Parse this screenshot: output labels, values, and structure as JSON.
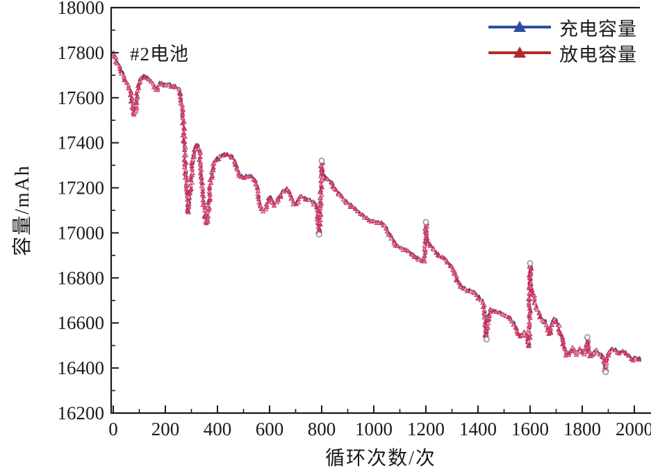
{
  "chart_data": {
    "type": "line",
    "annotation": "#2电池",
    "xlabel": "循环次数/次",
    "ylabel": "容量/mAh",
    "xlim": [
      0,
      2065
    ],
    "ylim": [
      16200,
      18000
    ],
    "x_major_ticks": [
      0,
      200,
      400,
      600,
      800,
      1000,
      1200,
      1400,
      1600,
      1800,
      2000
    ],
    "x_minor_ticks": [
      100,
      300,
      500,
      700,
      900,
      1100,
      1300,
      1500,
      1700,
      1900
    ],
    "y_major_ticks": [
      16200,
      16400,
      16600,
      16800,
      17000,
      17200,
      17400,
      17600,
      17800,
      18000
    ],
    "y_minor_ticks": [
      16300,
      16500,
      16700,
      16900,
      17100,
      17300,
      17500,
      17700,
      17900
    ],
    "grid": false,
    "legend_position": "top-right-inside",
    "series": [
      {
        "name": "充电容量",
        "legend_color": "#2c4da1",
        "marker": "triangle",
        "marker_color": "#31509c",
        "line_color": "#5d6470",
        "value_offset": 6
      },
      {
        "name": "放电容量",
        "legend_color": "#b02a2a",
        "marker": "triangle",
        "marker_palette": [
          "#ef7394",
          "#e05577",
          "#f49ab2",
          "#d63d64",
          "#e86283"
        ],
        "marker_edge": "#a81f48",
        "line_color": "#c2395f",
        "value_offset": 0
      }
    ],
    "points": [
      [
        0,
        17795
      ],
      [
        5,
        17780
      ],
      [
        10,
        17768
      ],
      [
        16,
        17755
      ],
      [
        22,
        17742
      ],
      [
        28,
        17728
      ],
      [
        34,
        17712
      ],
      [
        40,
        17690
      ],
      [
        46,
        17672
      ],
      [
        52,
        17660
      ],
      [
        58,
        17648
      ],
      [
        64,
        17630
      ],
      [
        70,
        17595
      ],
      [
        76,
        17550
      ],
      [
        81,
        17522
      ],
      [
        86,
        17545
      ],
      [
        92,
        17605
      ],
      [
        98,
        17655
      ],
      [
        105,
        17678
      ],
      [
        112,
        17690
      ],
      [
        120,
        17696
      ],
      [
        128,
        17690
      ],
      [
        136,
        17682
      ],
      [
        144,
        17670
      ],
      [
        152,
        17655
      ],
      [
        159,
        17642
      ],
      [
        165,
        17632
      ],
      [
        171,
        17645
      ],
      [
        178,
        17660
      ],
      [
        186,
        17663
      ],
      [
        194,
        17658
      ],
      [
        202,
        17654
      ],
      [
        210,
        17660
      ],
      [
        218,
        17656
      ],
      [
        226,
        17650
      ],
      [
        234,
        17646
      ],
      [
        242,
        17642
      ],
      [
        250,
        17638
      ],
      [
        256,
        17625
      ],
      [
        262,
        17585
      ],
      [
        267,
        17515
      ],
      [
        271,
        17440
      ],
      [
        275,
        17350
      ],
      [
        279,
        17245
      ],
      [
        283,
        17150
      ],
      [
        287,
        17088
      ],
      [
        292,
        17130
      ],
      [
        297,
        17210
      ],
      [
        302,
        17275
      ],
      [
        307,
        17330
      ],
      [
        313,
        17365
      ],
      [
        319,
        17390
      ],
      [
        325,
        17388
      ],
      [
        331,
        17352
      ],
      [
        337,
        17285
      ],
      [
        343,
        17195
      ],
      [
        349,
        17115
      ],
      [
        355,
        17058
      ],
      [
        360,
        17040
      ],
      [
        365,
        17105
      ],
      [
        370,
        17185
      ],
      [
        376,
        17250
      ],
      [
        382,
        17290
      ],
      [
        389,
        17318
      ],
      [
        396,
        17328
      ],
      [
        405,
        17332
      ],
      [
        415,
        17340
      ],
      [
        425,
        17344
      ],
      [
        435,
        17345
      ],
      [
        445,
        17340
      ],
      [
        455,
        17334
      ],
      [
        463,
        17322
      ],
      [
        470,
        17300
      ],
      [
        478,
        17272
      ],
      [
        486,
        17252
      ],
      [
        494,
        17244
      ],
      [
        502,
        17242
      ],
      [
        512,
        17248
      ],
      [
        522,
        17252
      ],
      [
        532,
        17247
      ],
      [
        541,
        17238
      ],
      [
        548,
        17222
      ],
      [
        555,
        17185
      ],
      [
        562,
        17135
      ],
      [
        569,
        17105
      ],
      [
        576,
        17094
      ],
      [
        583,
        17102
      ],
      [
        590,
        17128
      ],
      [
        597,
        17150
      ],
      [
        604,
        17158
      ],
      [
        611,
        17142
      ],
      [
        618,
        17124
      ],
      [
        625,
        17128
      ],
      [
        632,
        17146
      ],
      [
        640,
        17162
      ],
      [
        649,
        17176
      ],
      [
        658,
        17188
      ],
      [
        666,
        17192
      ],
      [
        674,
        17184
      ],
      [
        681,
        17165
      ],
      [
        688,
        17138
      ],
      [
        695,
        17122
      ],
      [
        702,
        17122
      ],
      [
        709,
        17140
      ],
      [
        716,
        17156
      ],
      [
        724,
        17158
      ],
      [
        733,
        17152
      ],
      [
        742,
        17148
      ],
      [
        752,
        17143
      ],
      [
        762,
        17137
      ],
      [
        771,
        17130
      ],
      [
        779,
        17122
      ],
      [
        784,
        17085
      ],
      [
        788,
        17020
      ],
      [
        790,
        16993
      ],
      [
        793,
        17062
      ],
      [
        796,
        17160
      ],
      [
        799,
        17250
      ],
      [
        800,
        17320
      ],
      [
        802,
        17262
      ],
      [
        806,
        17252
      ],
      [
        812,
        17246
      ],
      [
        820,
        17240
      ],
      [
        828,
        17232
      ],
      [
        836,
        17220
      ],
      [
        845,
        17206
      ],
      [
        854,
        17190
      ],
      [
        863,
        17176
      ],
      [
        872,
        17163
      ],
      [
        881,
        17152
      ],
      [
        890,
        17142
      ],
      [
        900,
        17132
      ],
      [
        910,
        17122
      ],
      [
        920,
        17112
      ],
      [
        930,
        17102
      ],
      [
        940,
        17092
      ],
      [
        950,
        17082
      ],
      [
        960,
        17072
      ],
      [
        970,
        17062
      ],
      [
        980,
        17056
      ],
      [
        990,
        17052
      ],
      [
        1000,
        17050
      ],
      [
        1010,
        17047
      ],
      [
        1020,
        17044
      ],
      [
        1030,
        17040
      ],
      [
        1040,
        17034
      ],
      [
        1048,
        17022
      ],
      [
        1056,
        17002
      ],
      [
        1063,
        16986
      ],
      [
        1070,
        16972
      ],
      [
        1078,
        16955
      ],
      [
        1086,
        16944
      ],
      [
        1094,
        16937
      ],
      [
        1103,
        16930
      ],
      [
        1112,
        16925
      ],
      [
        1121,
        16920
      ],
      [
        1130,
        16916
      ],
      [
        1139,
        16909
      ],
      [
        1148,
        16901
      ],
      [
        1157,
        16895
      ],
      [
        1166,
        16889
      ],
      [
        1175,
        16883
      ],
      [
        1184,
        16876
      ],
      [
        1191,
        16871
      ],
      [
        1196,
        16890
      ],
      [
        1199,
        16975
      ],
      [
        1200,
        17048
      ],
      [
        1202,
        16992
      ],
      [
        1206,
        16964
      ],
      [
        1211,
        16950
      ],
      [
        1218,
        16941
      ],
      [
        1226,
        16931
      ],
      [
        1233,
        16917
      ],
      [
        1240,
        16906
      ],
      [
        1248,
        16898
      ],
      [
        1256,
        16891
      ],
      [
        1264,
        16886
      ],
      [
        1272,
        16881
      ],
      [
        1280,
        16874
      ],
      [
        1288,
        16862
      ],
      [
        1296,
        16847
      ],
      [
        1304,
        16831
      ],
      [
        1312,
        16812
      ],
      [
        1320,
        16792
      ],
      [
        1328,
        16774
      ],
      [
        1336,
        16761
      ],
      [
        1344,
        16752
      ],
      [
        1352,
        16747
      ],
      [
        1361,
        16743
      ],
      [
        1371,
        16741
      ],
      [
        1381,
        16737
      ],
      [
        1390,
        16729
      ],
      [
        1398,
        16718
      ],
      [
        1406,
        16707
      ],
      [
        1413,
        16697
      ],
      [
        1419,
        16689
      ],
      [
        1424,
        16660
      ],
      [
        1428,
        16600
      ],
      [
        1431,
        16540
      ],
      [
        1433,
        16527
      ],
      [
        1436,
        16580
      ],
      [
        1440,
        16628
      ],
      [
        1445,
        16650
      ],
      [
        1451,
        16655
      ],
      [
        1459,
        16651
      ],
      [
        1468,
        16647
      ],
      [
        1477,
        16644
      ],
      [
        1487,
        16640
      ],
      [
        1497,
        16634
      ],
      [
        1507,
        16627
      ],
      [
        1517,
        16620
      ],
      [
        1527,
        16612
      ],
      [
        1535,
        16600
      ],
      [
        1543,
        16585
      ],
      [
        1550,
        16565
      ],
      [
        1557,
        16543
      ],
      [
        1563,
        16533
      ],
      [
        1570,
        16543
      ],
      [
        1576,
        16558
      ],
      [
        1582,
        16552
      ],
      [
        1588,
        16528
      ],
      [
        1593,
        16505
      ],
      [
        1596,
        16495
      ],
      [
        1598,
        16600
      ],
      [
        1600,
        16865
      ],
      [
        1602,
        16800
      ],
      [
        1605,
        16760
      ],
      [
        1610,
        16735
      ],
      [
        1616,
        16706
      ],
      [
        1622,
        16680
      ],
      [
        1629,
        16658
      ],
      [
        1636,
        16638
      ],
      [
        1643,
        16620
      ],
      [
        1650,
        16611
      ],
      [
        1657,
        16605
      ],
      [
        1663,
        16592
      ],
      [
        1668,
        16572
      ],
      [
        1673,
        16549
      ],
      [
        1678,
        16558
      ],
      [
        1684,
        16598
      ],
      [
        1690,
        16619
      ],
      [
        1696,
        16614
      ],
      [
        1702,
        16604
      ],
      [
        1708,
        16587
      ],
      [
        1714,
        16561
      ],
      [
        1720,
        16540
      ],
      [
        1726,
        16519
      ],
      [
        1731,
        16482
      ],
      [
        1737,
        16462
      ],
      [
        1743,
        16452
      ],
      [
        1749,
        16459
      ],
      [
        1755,
        16476
      ],
      [
        1761,
        16487
      ],
      [
        1767,
        16480
      ],
      [
        1773,
        16468
      ],
      [
        1779,
        16459
      ],
      [
        1785,
        16469
      ],
      [
        1791,
        16481
      ],
      [
        1797,
        16477
      ],
      [
        1803,
        16467
      ],
      [
        1809,
        16459
      ],
      [
        1814,
        16468
      ],
      [
        1817,
        16500
      ],
      [
        1820,
        16537
      ],
      [
        1823,
        16490
      ],
      [
        1827,
        16457
      ],
      [
        1832,
        16448
      ],
      [
        1838,
        16455
      ],
      [
        1844,
        16469
      ],
      [
        1850,
        16477
      ],
      [
        1857,
        16471
      ],
      [
        1864,
        16463
      ],
      [
        1871,
        16455
      ],
      [
        1878,
        16447
      ],
      [
        1884,
        16428
      ],
      [
        1888,
        16398
      ],
      [
        1890,
        16382
      ],
      [
        1893,
        16420
      ],
      [
        1897,
        16448
      ],
      [
        1903,
        16466
      ],
      [
        1909,
        16477
      ],
      [
        1915,
        16481
      ],
      [
        1922,
        16479
      ],
      [
        1930,
        16474
      ],
      [
        1938,
        16469
      ],
      [
        1946,
        16467
      ],
      [
        1954,
        16471
      ],
      [
        1962,
        16469
      ],
      [
        1970,
        16461
      ],
      [
        1978,
        16450
      ],
      [
        1986,
        16441
      ],
      [
        1994,
        16437
      ],
      [
        2002,
        16441
      ],
      [
        2010,
        16444
      ],
      [
        2018,
        16437
      ],
      [
        2025,
        16428
      ]
    ],
    "outlier_circles": [
      [
        790,
        16993
      ],
      [
        800,
        17320
      ],
      [
        1200,
        17048
      ],
      [
        1433,
        16527
      ],
      [
        1600,
        16865
      ],
      [
        1820,
        16537
      ],
      [
        1890,
        16382
      ]
    ]
  },
  "style": {
    "axis_color": "#1a1a1a",
    "tick_label_color": "#1a1a1a",
    "background": "#ffffff"
  }
}
